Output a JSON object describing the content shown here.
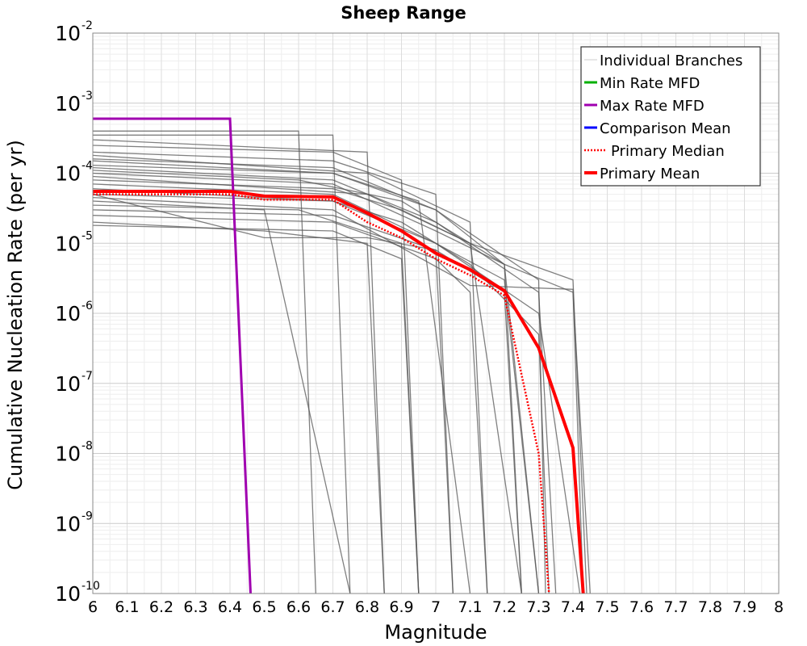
{
  "chart_data": {
    "type": "line",
    "title": "Sheep Range",
    "xlabel": "Magnitude",
    "ylabel": "Cumulative Nucleation Rate (per yr)",
    "xlim": [
      6,
      8
    ],
    "ylim": [
      1e-10,
      0.01
    ],
    "yscale": "log",
    "grid": true,
    "legend_position": "top-right",
    "x_ticks": [
      "6",
      "6.1",
      "6.2",
      "6.3",
      "6.4",
      "6.5",
      "6.6",
      "6.7",
      "6.8",
      "6.9",
      "7",
      "7.1",
      "7.2",
      "7.3",
      "7.4",
      "7.5",
      "7.6",
      "7.7",
      "7.8",
      "7.9",
      "8"
    ],
    "y_ticks": [
      {
        "value": 1e-10,
        "base": "10",
        "exp": "-10"
      },
      {
        "value": 1e-09,
        "base": "10",
        "exp": "-9"
      },
      {
        "value": 1e-08,
        "base": "10",
        "exp": "-8"
      },
      {
        "value": 1e-07,
        "base": "10",
        "exp": "-7"
      },
      {
        "value": 1e-06,
        "base": "10",
        "exp": "-6"
      },
      {
        "value": 1e-05,
        "base": "10",
        "exp": "-5"
      },
      {
        "value": 0.0001,
        "base": "10",
        "exp": "-4"
      },
      {
        "value": 0.001,
        "base": "10",
        "exp": "-3"
      },
      {
        "value": 0.01,
        "base": "10",
        "exp": "-2"
      }
    ],
    "series": [
      {
        "name": "Individual Branches",
        "color": "#555555",
        "style": "thin",
        "lines": [
          [
            [
              6,
              0.0004
            ],
            [
              6.6,
              0.0004
            ],
            [
              6.65,
              1e-10
            ]
          ],
          [
            [
              6,
              0.00035
            ],
            [
              6.7,
              0.00035
            ],
            [
              6.75,
              1e-10
            ]
          ],
          [
            [
              6,
              0.0003
            ],
            [
              6.8,
              0.0002
            ],
            [
              6.85,
              1e-10
            ]
          ],
          [
            [
              6,
              0.00025
            ],
            [
              6.7,
              0.0002
            ],
            [
              6.9,
              8e-05
            ],
            [
              6.95,
              1e-10
            ]
          ],
          [
            [
              6,
              0.0002
            ],
            [
              6.7,
              0.00015
            ],
            [
              7,
              5e-05
            ],
            [
              7.05,
              1e-10
            ]
          ],
          [
            [
              6,
              0.00018
            ],
            [
              6.8,
              0.0001
            ],
            [
              7.1,
              2e-05
            ],
            [
              7.15,
              1e-10
            ]
          ],
          [
            [
              6,
              0.00015
            ],
            [
              6.7,
              0.0001
            ],
            [
              7,
              3e-05
            ],
            [
              7.2,
              5e-06
            ],
            [
              7.25,
              1e-10
            ]
          ],
          [
            [
              6,
              0.00012
            ],
            [
              6.7,
              8e-05
            ],
            [
              7,
              2e-05
            ],
            [
              7.3,
              2e-06
            ],
            [
              7.35,
              1e-10
            ]
          ],
          [
            [
              6,
              0.0001
            ],
            [
              6.7,
              7e-05
            ],
            [
              7,
              1.5e-05
            ],
            [
              7.2,
              5e-06
            ],
            [
              7.4,
              2e-06
            ],
            [
              7.45,
              1e-10
            ]
          ],
          [
            [
              6,
              8e-05
            ],
            [
              6.7,
              6e-05
            ],
            [
              6.9,
              3e-05
            ],
            [
              7.1,
              1e-05
            ],
            [
              7.25,
              1e-10
            ]
          ],
          [
            [
              6,
              7e-05
            ],
            [
              6.7,
              5e-05
            ],
            [
              7,
              1e-05
            ],
            [
              7.2,
              3e-06
            ],
            [
              7.3,
              1e-10
            ]
          ],
          [
            [
              6,
              6e-05
            ],
            [
              6.7,
              4e-05
            ],
            [
              7,
              1e-05
            ],
            [
              7.3,
              1e-06
            ],
            [
              7.42,
              1e-10
            ]
          ],
          [
            [
              6,
              5e-05
            ],
            [
              6.7,
              4e-05
            ],
            [
              6.9,
              2e-05
            ],
            [
              7.1,
              5e-06
            ],
            [
              7.3,
              5e-07
            ],
            [
              7.33,
              1e-10
            ]
          ],
          [
            [
              6,
              4e-05
            ],
            [
              6.5,
              3e-05
            ],
            [
              6.75,
              1e-10
            ]
          ],
          [
            [
              6,
              3.5e-05
            ],
            [
              6.6,
              3e-05
            ],
            [
              6.9,
              1e-05
            ],
            [
              6.95,
              1e-10
            ]
          ],
          [
            [
              6,
              3e-05
            ],
            [
              6.7,
              2.5e-05
            ],
            [
              7,
              8e-06
            ],
            [
              7.2,
              2e-06
            ],
            [
              7.25,
              1e-10
            ]
          ],
          [
            [
              6,
              2.5e-05
            ],
            [
              6.7,
              2e-05
            ],
            [
              7,
              6e-06
            ],
            [
              7.1,
              2e-06
            ],
            [
              7.15,
              1e-10
            ]
          ],
          [
            [
              6,
              2e-05
            ],
            [
              6.5,
              1.5e-05
            ],
            [
              6.8,
              1e-05
            ],
            [
              6.85,
              1e-10
            ]
          ],
          [
            [
              6,
              1.8e-05
            ],
            [
              6.7,
              1.5e-05
            ],
            [
              6.9,
              6e-06
            ],
            [
              6.95,
              1e-10
            ]
          ],
          [
            [
              6,
              5e-05
            ],
            [
              6.5,
              1.2e-05
            ],
            [
              6.8,
              1.2e-05
            ],
            [
              7,
              8e-06
            ],
            [
              7.05,
              1e-10
            ]
          ],
          [
            [
              6,
              9e-05
            ],
            [
              6.8,
              5e-05
            ],
            [
              7.1,
              1e-05
            ],
            [
              7.4,
              3e-06
            ],
            [
              7.44,
              1e-10
            ]
          ],
          [
            [
              6,
              0.00011
            ],
            [
              6.6,
              8e-05
            ],
            [
              6.9,
              4e-05
            ],
            [
              7.2,
              5e-06
            ],
            [
              7.3,
              1e-10
            ]
          ],
          [
            [
              6,
              0.00013
            ],
            [
              6.7,
              0.0001
            ],
            [
              6.95,
              4e-05
            ],
            [
              7.1,
              1e-10
            ]
          ],
          [
            [
              6,
              0.00016
            ],
            [
              6.7,
              0.00012
            ],
            [
              7,
              3e-05
            ],
            [
              7.3,
              3e-06
            ],
            [
              7.32,
              1e-10
            ]
          ],
          [
            [
              6,
              4.5e-05
            ],
            [
              6.7,
              3e-05
            ],
            [
              7.1,
              2.5e-06
            ],
            [
              7.4,
              2.2e-06
            ],
            [
              7.43,
              1e-10
            ]
          ]
        ]
      },
      {
        "name": "Min Rate MFD",
        "color": "#00b000",
        "values": []
      },
      {
        "name": "Max Rate MFD",
        "color": "#a000b0",
        "values": [
          [
            6,
            0.0006
          ],
          [
            6.4,
            0.0006
          ],
          [
            6.46,
            1e-10
          ]
        ]
      },
      {
        "name": "Comparison Mean",
        "color": "#0000ff",
        "values": []
      },
      {
        "name": "Primary Median",
        "color": "#ff0000",
        "style": "dotted",
        "values": [
          [
            6,
            5e-05
          ],
          [
            6.4,
            5e-05
          ],
          [
            6.5,
            4.2e-05
          ],
          [
            6.7,
            4.2e-05
          ],
          [
            6.8,
            2e-05
          ],
          [
            6.9,
            1.2e-05
          ],
          [
            7,
            6e-06
          ],
          [
            7.1,
            3.5e-06
          ],
          [
            7.2,
            1.8e-06
          ],
          [
            7.3,
            1e-08
          ],
          [
            7.33,
            1e-10
          ]
        ]
      },
      {
        "name": "Primary Mean",
        "color": "#ff0000",
        "style": "thick",
        "values": [
          [
            6,
            5.5e-05
          ],
          [
            6.4,
            5.5e-05
          ],
          [
            6.5,
            4.7e-05
          ],
          [
            6.7,
            4.6e-05
          ],
          [
            6.8,
            2.7e-05
          ],
          [
            6.9,
            1.5e-05
          ],
          [
            7,
            7.2e-06
          ],
          [
            7.1,
            4.2e-06
          ],
          [
            7.2,
            2.1e-06
          ],
          [
            7.3,
            3.2e-07
          ],
          [
            7.4,
            1.2e-08
          ],
          [
            7.43,
            1e-10
          ]
        ]
      }
    ]
  }
}
